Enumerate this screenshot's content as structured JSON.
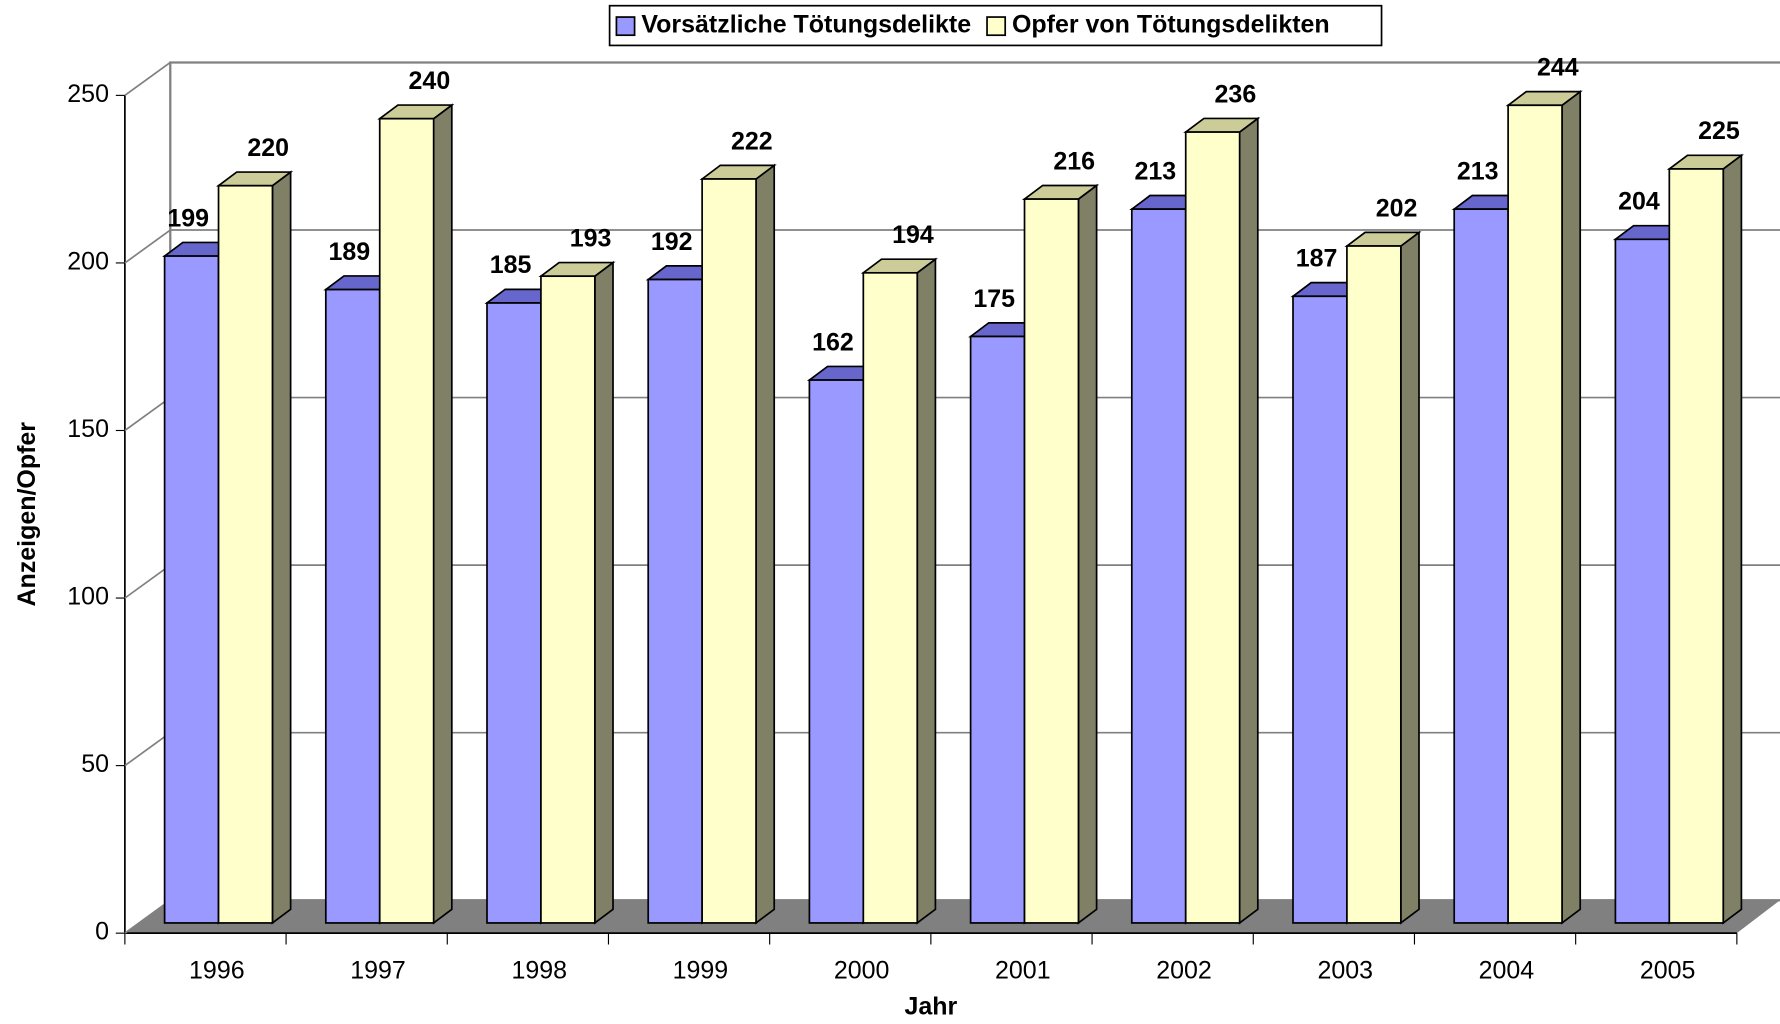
{
  "chart_data": {
    "type": "bar3d",
    "x_label": "Jahr",
    "y_label": "Anzeigen/Opfer",
    "categories": [
      "1996",
      "1997",
      "1998",
      "1999",
      "2000",
      "2001",
      "2002",
      "2003",
      "2004",
      "2005"
    ],
    "series": [
      {
        "name": "Vorsätzliche Tötungsdelikte",
        "color": "#9999ff",
        "values": [
          199,
          189,
          185,
          192,
          162,
          175,
          213,
          187,
          213,
          204
        ]
      },
      {
        "name": "Opfer von Tötungsdelikten",
        "color": "#ffffcc",
        "values": [
          220,
          240,
          193,
          222,
          194,
          216,
          236,
          202,
          244,
          225
        ]
      }
    ],
    "ylim": [
      0,
      250
    ],
    "yticks": [
      0,
      50,
      100,
      150,
      200,
      250
    ],
    "grid": true,
    "legend": "top"
  }
}
